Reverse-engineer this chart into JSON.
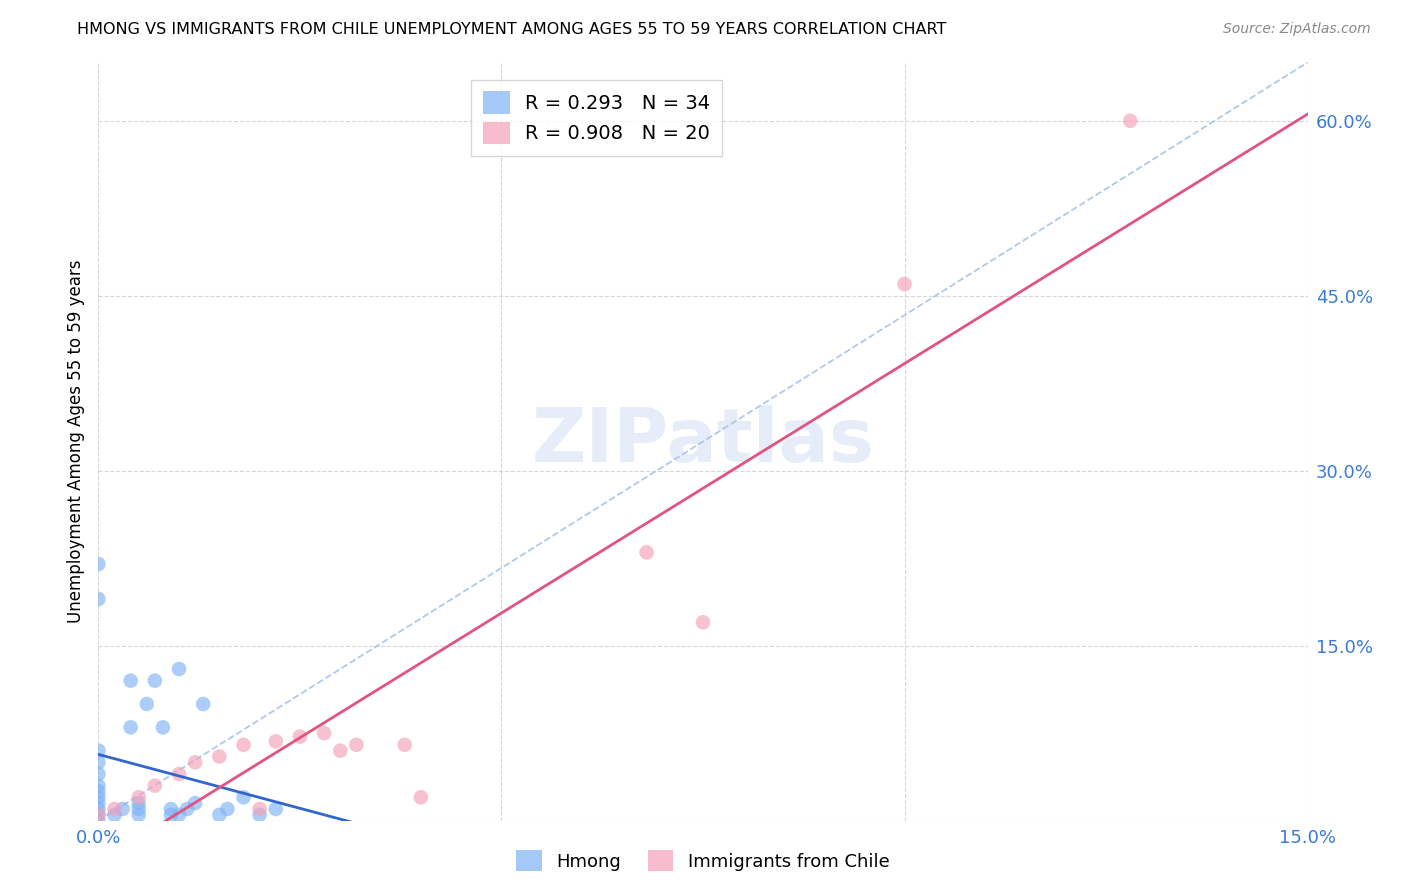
{
  "title": "HMONG VS IMMIGRANTS FROM CHILE UNEMPLOYMENT AMONG AGES 55 TO 59 YEARS CORRELATION CHART",
  "source": "Source: ZipAtlas.com",
  "ylabel": "Unemployment Among Ages 55 to 59 years",
  "xlim": [
    0.0,
    0.15
  ],
  "ylim": [
    0.0,
    0.65
  ],
  "hmong_color": "#7fb3f5",
  "chile_color": "#f5a0b8",
  "hmong_line_color": "#3366cc",
  "chile_line_color": "#e05580",
  "diag_color": "#a0c0e8",
  "hmong_R": 0.293,
  "hmong_N": 34,
  "chile_R": 0.908,
  "chile_N": 20,
  "watermark": "ZIPatlas",
  "hmong_x": [
    0.0,
    0.0,
    0.0,
    0.0,
    0.0,
    0.0,
    0.0,
    0.0,
    0.0,
    0.0,
    0.0,
    0.0,
    0.002,
    0.003,
    0.004,
    0.004,
    0.005,
    0.005,
    0.005,
    0.006,
    0.007,
    0.008,
    0.009,
    0.009,
    0.01,
    0.01,
    0.011,
    0.012,
    0.013,
    0.015,
    0.016,
    0.018,
    0.02,
    0.022
  ],
  "hmong_y": [
    0.0,
    0.005,
    0.01,
    0.015,
    0.02,
    0.025,
    0.03,
    0.04,
    0.05,
    0.06,
    0.19,
    0.22,
    0.005,
    0.01,
    0.08,
    0.12,
    0.005,
    0.01,
    0.015,
    0.1,
    0.12,
    0.08,
    0.005,
    0.01,
    0.005,
    0.13,
    0.01,
    0.015,
    0.1,
    0.005,
    0.01,
    0.02,
    0.005,
    0.01
  ],
  "chile_x": [
    0.0,
    0.002,
    0.005,
    0.007,
    0.01,
    0.012,
    0.015,
    0.018,
    0.02,
    0.022,
    0.025,
    0.028,
    0.03,
    0.032,
    0.038,
    0.04,
    0.068,
    0.075,
    0.1,
    0.128
  ],
  "chile_y": [
    0.005,
    0.01,
    0.02,
    0.03,
    0.04,
    0.05,
    0.055,
    0.065,
    0.01,
    0.068,
    0.072,
    0.075,
    0.06,
    0.065,
    0.065,
    0.02,
    0.23,
    0.17,
    0.46,
    0.6
  ]
}
